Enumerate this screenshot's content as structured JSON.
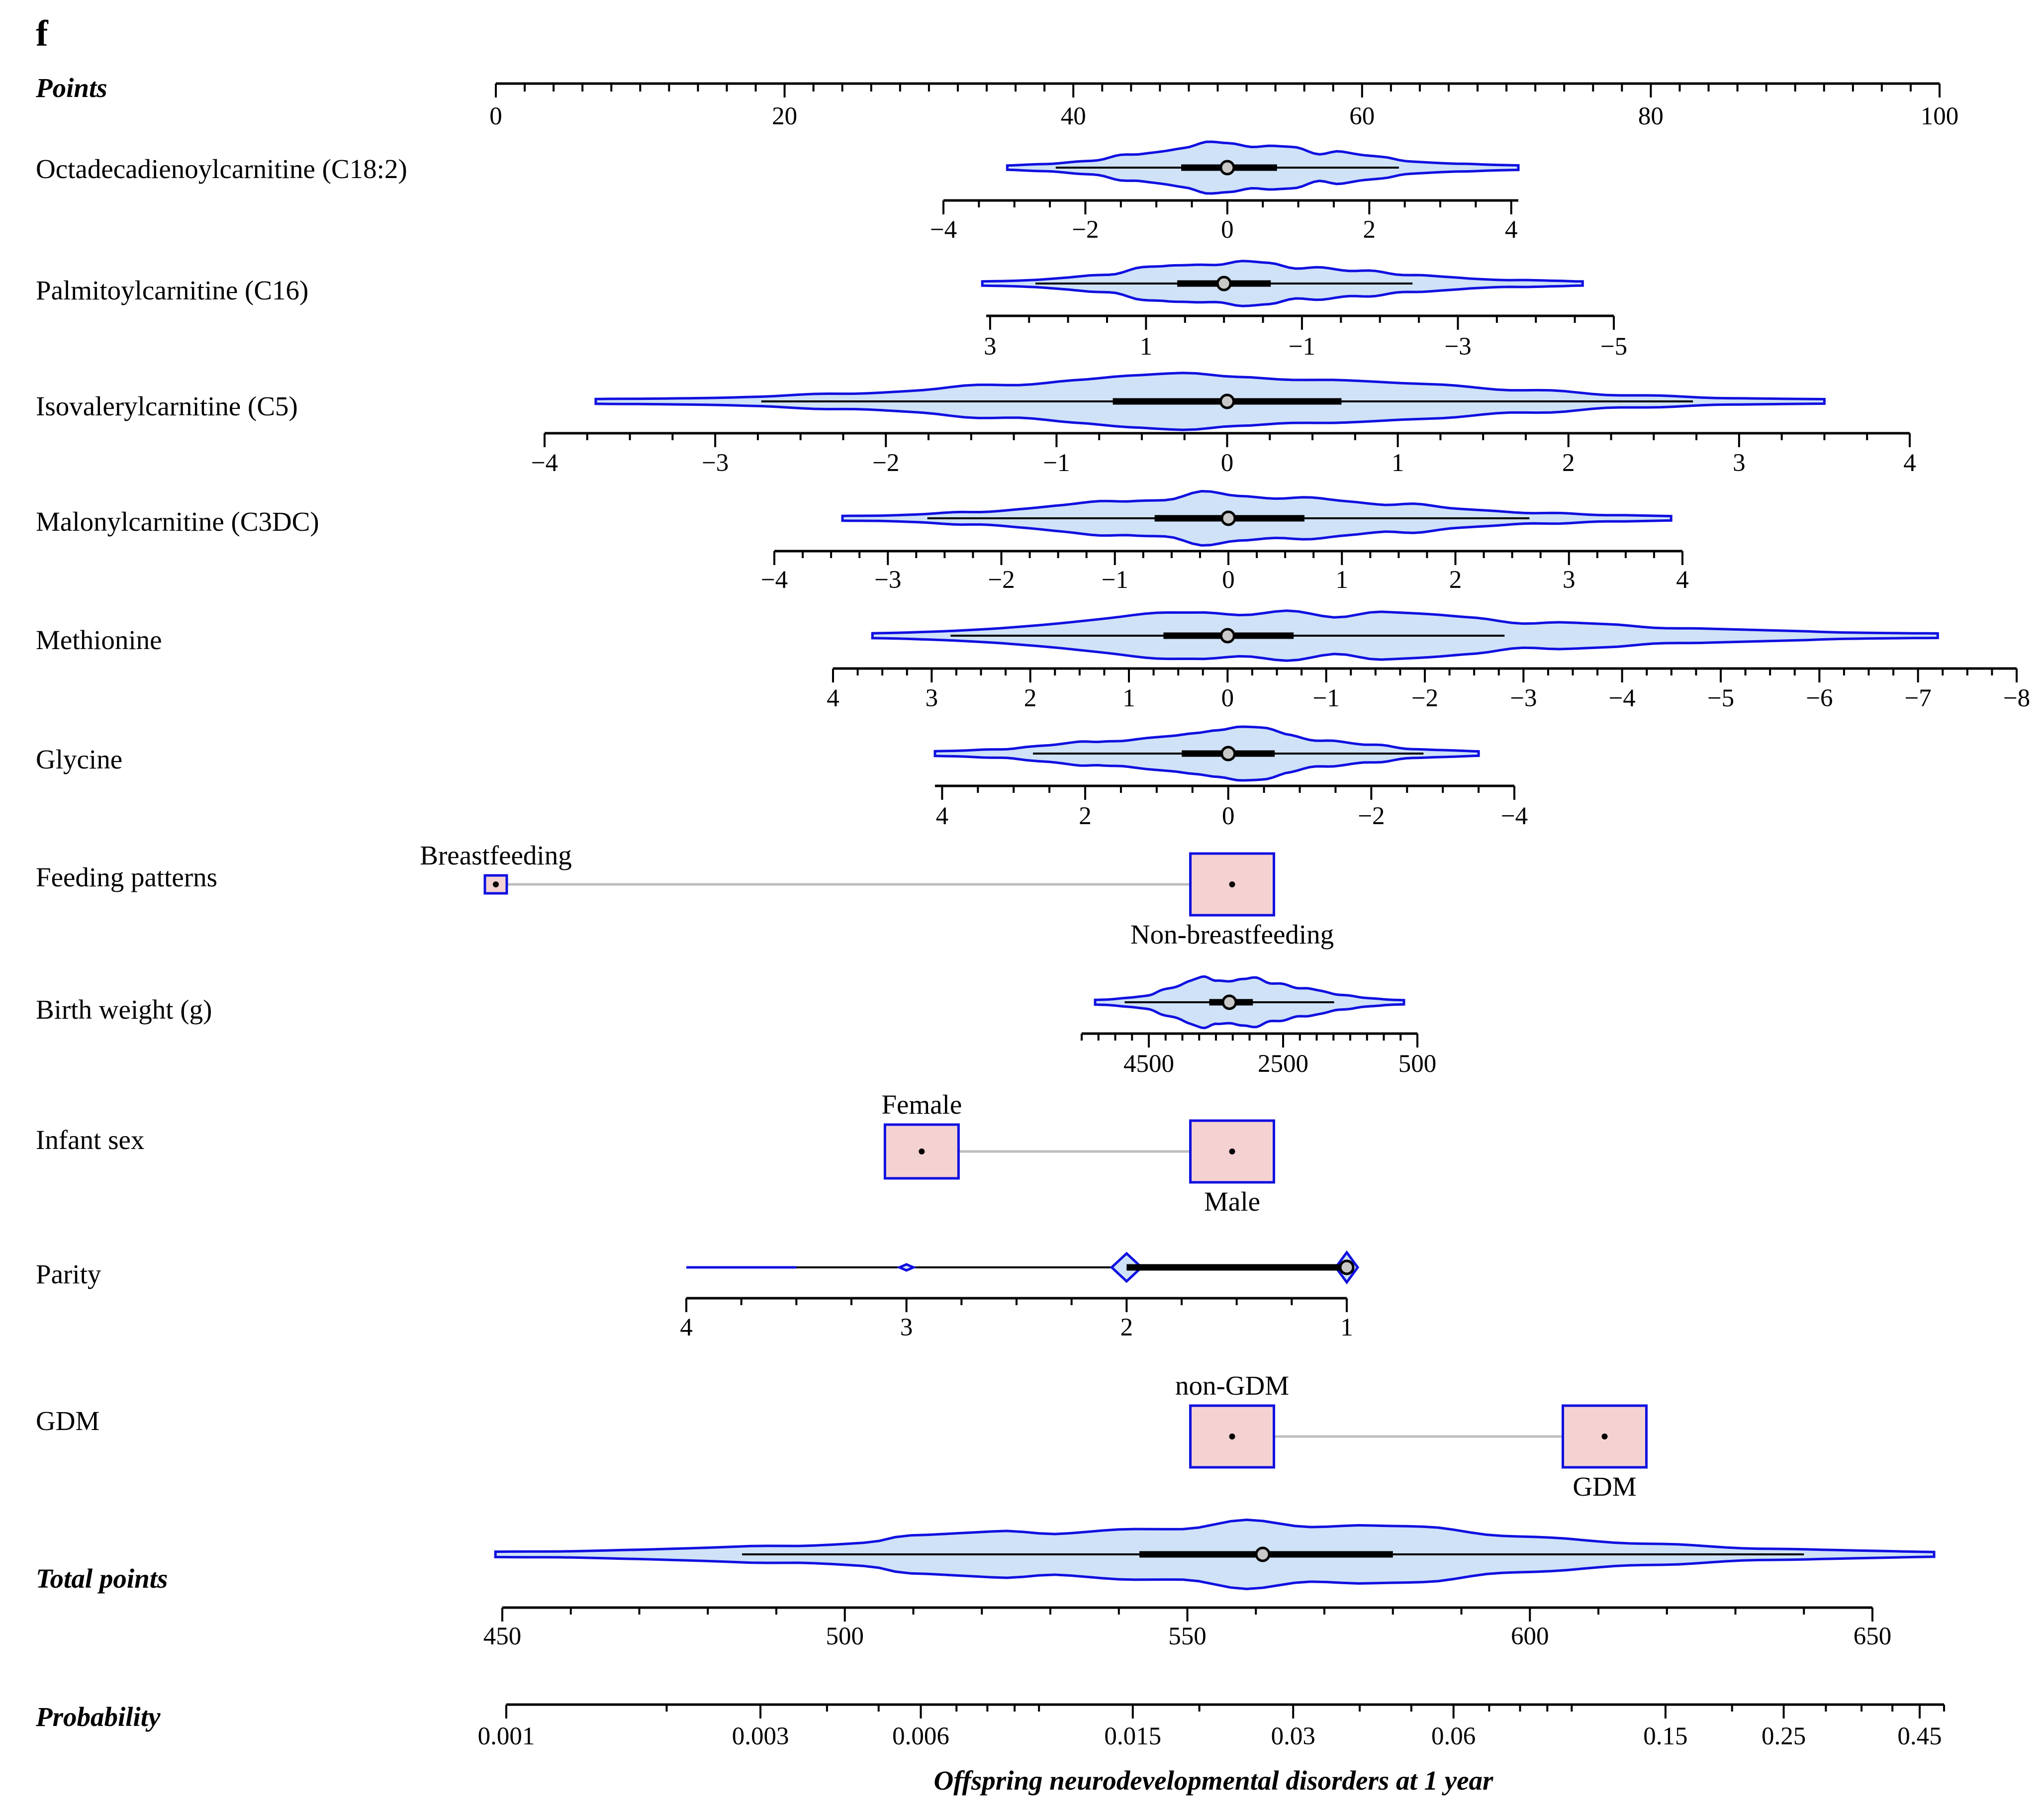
{
  "panel_label": "f",
  "chart_data": {
    "type": "nomogram",
    "points_axis": {
      "label": "Points",
      "range": [
        0,
        100
      ],
      "ticks": [
        0,
        20,
        40,
        60,
        80,
        100
      ]
    },
    "rows": [
      {
        "id": "c182",
        "label": "Octadecadienoylcarnitine (C18:2)",
        "kind": "continuous",
        "axis_range": [
          -4,
          4.1
        ],
        "ticks": [
          -4,
          -2,
          0,
          2,
          4
        ],
        "tick_labels": [
          "−4",
          "−2",
          "0",
          "2",
          "4"
        ],
        "minor_step": 0.5,
        "distribution_range": [
          -3.1,
          4.1
        ],
        "iqr": [
          -0.65,
          0.7
        ],
        "median": 0
      },
      {
        "id": "c16",
        "label": "Palmitoylcarnitine (C16)",
        "kind": "continuous",
        "axis_range": [
          3.05,
          -5
        ],
        "ticks": [
          3,
          1,
          -1,
          -3,
          -5
        ],
        "tick_labels": [
          "3",
          "1",
          "−1",
          "−3",
          "−5"
        ],
        "minor_step": 0.5,
        "distribution_range": [
          3.1,
          -4.6
        ],
        "iqr": [
          0.6,
          -0.6
        ],
        "median": 0
      },
      {
        "id": "c5",
        "label": "Isovalerylcarnitine (C5)",
        "kind": "continuous",
        "axis_range": [
          -4,
          4
        ],
        "ticks": [
          -4,
          -3,
          -2,
          -1,
          0,
          1,
          2,
          3,
          4
        ],
        "tick_labels": [
          "−4",
          "−3",
          "−2",
          "−1",
          "0",
          "1",
          "2",
          "3",
          "4"
        ],
        "minor_step": 0.25,
        "distribution_range": [
          -3.7,
          3.5
        ],
        "iqr": [
          -0.67,
          0.67
        ],
        "median": 0
      },
      {
        "id": "c3dc",
        "label": "Malonylcarnitine (C3DC)",
        "kind": "continuous",
        "axis_range": [
          -4,
          4
        ],
        "ticks": [
          -4,
          -3,
          -2,
          -1,
          0,
          1,
          2,
          3,
          4
        ],
        "tick_labels": [
          "−4",
          "−3",
          "−2",
          "−1",
          "0",
          "1",
          "2",
          "3",
          "4"
        ],
        "minor_step": 0.25,
        "distribution_range": [
          -3.4,
          3.9
        ],
        "iqr": [
          -0.65,
          0.67
        ],
        "median": 0
      },
      {
        "id": "met",
        "label": "Methionine",
        "kind": "continuous",
        "axis_range": [
          4,
          -8
        ],
        "ticks": [
          4,
          3,
          2,
          1,
          0,
          -1,
          -2,
          -3,
          -4,
          -5,
          -6,
          -7,
          -8
        ],
        "tick_labels": [
          "4",
          "3",
          "2",
          "1",
          "0",
          "−1",
          "−2",
          "−3",
          "−4",
          "−5",
          "−6",
          "−7",
          "−8"
        ],
        "minor_step": 0.25,
        "distribution_range": [
          3.6,
          -7.2
        ],
        "iqr": [
          0.65,
          -0.67
        ],
        "median": 0
      },
      {
        "id": "gly",
        "label": "Glycine",
        "kind": "continuous",
        "axis_range": [
          4.1,
          -4
        ],
        "ticks": [
          4,
          2,
          0,
          -2,
          -4
        ],
        "tick_labels": [
          "4",
          "2",
          "0",
          "−2",
          "−4"
        ],
        "minor_step": 0.5,
        "distribution_range": [
          4.1,
          -3.5
        ],
        "iqr": [
          0.65,
          -0.65
        ],
        "median": 0
      },
      {
        "id": "feed",
        "label": "Feeding patterns",
        "kind": "categorical",
        "categories": [
          {
            "name": "Breastfeeding",
            "points": 0,
            "label_pos": "above",
            "size": "small"
          },
          {
            "name": "Non-breastfeeding",
            "points": 51,
            "label_pos": "below",
            "size": "large"
          }
        ]
      },
      {
        "id": "bw",
        "label": "Birth weight (g)",
        "kind": "continuous",
        "axis_range": [
          5500,
          500
        ],
        "ticks": [
          4500,
          2500,
          500
        ],
        "tick_labels": [
          "4500",
          "2500",
          "500"
        ],
        "minor_step": 250,
        "distribution_range": [
          5300,
          700
        ],
        "iqr": [
          3600,
          2950
        ],
        "median": 3300
      },
      {
        "id": "sex",
        "label": "Infant sex",
        "kind": "categorical",
        "categories": [
          {
            "name": "Female",
            "points": 29.5,
            "label_pos": "above",
            "size": "medium"
          },
          {
            "name": "Male",
            "points": 51,
            "label_pos": "below",
            "size": "large"
          }
        ]
      },
      {
        "id": "parity",
        "label": "Parity",
        "kind": "discrete",
        "axis_range": [
          4,
          1
        ],
        "ticks": [
          4,
          3,
          2,
          1
        ],
        "tick_labels": [
          "4",
          "3",
          "2",
          "1"
        ],
        "minor_step": 0.25,
        "distribution_range": [
          4,
          1
        ],
        "iqr": [
          2,
          1
        ],
        "median": 1
      },
      {
        "id": "gdm",
        "label": "GDM",
        "kind": "categorical",
        "categories": [
          {
            "name": "non-GDM",
            "points": 51,
            "label_pos": "above",
            "size": "large"
          },
          {
            "name": "GDM",
            "points": 76.8,
            "label_pos": "below",
            "size": "large"
          }
        ]
      }
    ],
    "total_points": {
      "label": "Total points",
      "axis_range": [
        450,
        650
      ],
      "ticks": [
        450,
        500,
        550,
        600,
        650
      ],
      "minor_step": 10,
      "distribution_range": [
        449,
        659
      ],
      "iqr": [
        543,
        580
      ],
      "median": 561
    },
    "probability": {
      "label": "Probability",
      "tick_values": [
        0.001,
        0.003,
        0.006,
        0.015,
        0.03,
        0.06,
        0.15,
        0.25,
        0.45
      ],
      "tick_labels": [
        "0.001",
        "0.003",
        "0.006",
        "0.015",
        "0.03",
        "0.06",
        "0.15",
        "0.25",
        "0.45"
      ],
      "minor_values": [
        0.002,
        0.004,
        0.005,
        0.007,
        0.008,
        0.009,
        0.01,
        0.02,
        0.04,
        0.05,
        0.07,
        0.08,
        0.09,
        0.1,
        0.2,
        0.3,
        0.35,
        0.4,
        0.5
      ],
      "range": [
        0.001,
        0.5
      ],
      "xlabel": "Offspring neurodevelopmental disorders at 1 year"
    }
  }
}
